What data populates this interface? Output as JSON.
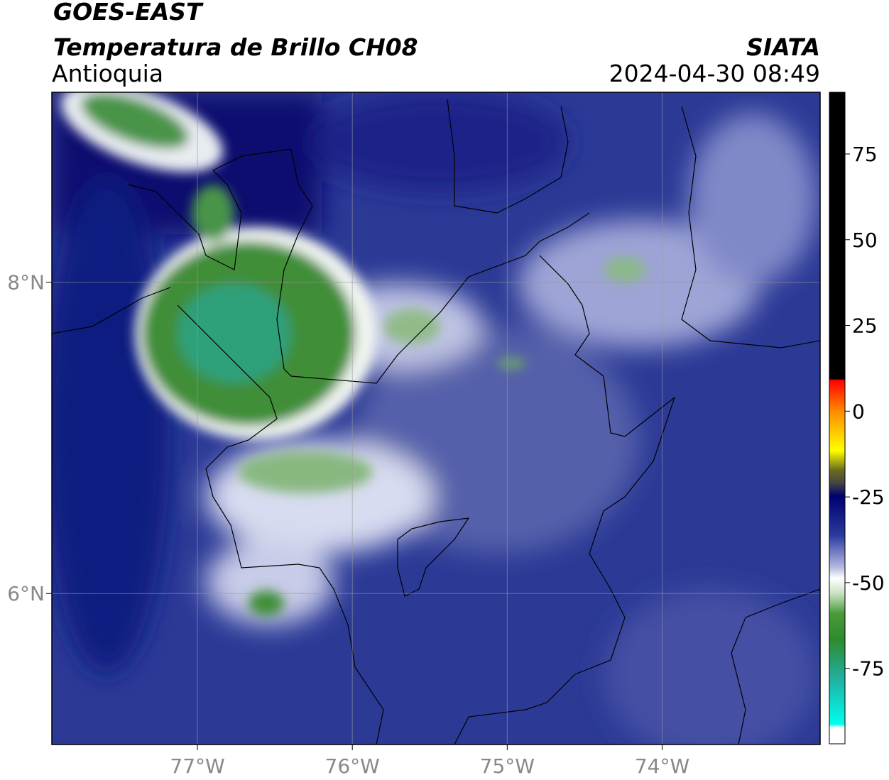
{
  "header": {
    "title": "GOES-EAST",
    "subtitle": "Temperatura de Brillo CH08",
    "region": "Antioquia",
    "source": "SIATA",
    "timestamp": "2024-04-30 08:49"
  },
  "map": {
    "lon_range": [
      -77.94,
      -72.98
    ],
    "lat_range": [
      5.03,
      9.22
    ],
    "lat_ticks": [
      {
        "value": 8,
        "label": "8°N"
      },
      {
        "value": 6,
        "label": "6°N"
      }
    ],
    "lon_ticks": [
      {
        "value": -77,
        "label": "77°W"
      },
      {
        "value": -76,
        "label": "76°W"
      },
      {
        "value": -75,
        "label": "75°W"
      },
      {
        "value": -74,
        "label": "74°W"
      }
    ]
  },
  "colorbar": {
    "range": [
      -97,
      93
    ],
    "ticks": [
      75,
      50,
      25,
      0,
      -25,
      -50,
      -75
    ]
  }
}
